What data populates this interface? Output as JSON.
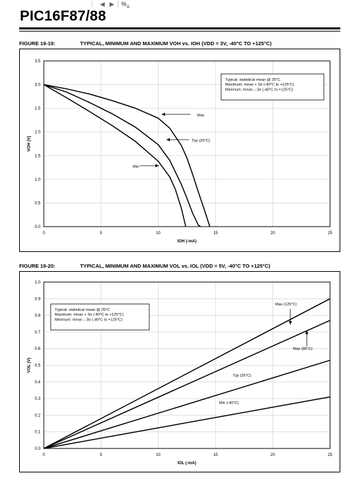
{
  "toolbar": {
    "back_icon": "chevron-left-icon",
    "forward_icon": "chevron-right-icon",
    "translate_icon": "translate-icon"
  },
  "header": {
    "title": "PIC16F87/88"
  },
  "figures": [
    {
      "number": "FIGURE 19-19:",
      "title": "TYPICAL, MINIMUM AND MAXIMUM VOH vs. IOH (VDD = 3V, -40°C TO +125°C)"
    },
    {
      "number": "FIGURE 19-20:",
      "title": "TYPICAL, MINIMUM AND MAXIMUM VOL vs. IOL (VDD = 5V, -40°C TO +125°C)"
    }
  ],
  "chart_data": [
    {
      "type": "line",
      "title": "TYPICAL, MINIMUM AND MAXIMUM VOH vs. IOH (VDD = 3V, -40°C TO +125°C)",
      "xlabel": "IOH (-mA)",
      "ylabel": "VOH (V)",
      "xlim": [
        0,
        25
      ],
      "ylim": [
        0,
        3.5
      ],
      "xticks": [
        "0",
        "5",
        "10",
        "15",
        "20",
        "25"
      ],
      "yticks": [
        "0.0",
        "0.5",
        "1.0",
        "1.5",
        "2.0",
        "2.5",
        "3.0",
        "3.5"
      ],
      "grid": true,
      "legend_text": [
        "Typical: statistical mean @ 25°C",
        "Maximum:  mean + 3σ (-40°C to +125°C)",
        "Minimum:  mean – 3σ (-40°C to +125°C)"
      ],
      "legend_position": "top-right",
      "series": [
        {
          "name": "Max",
          "x": [
            0,
            2,
            4,
            6,
            8,
            10,
            11,
            12,
            12.5,
            13,
            13.5,
            14,
            14.5
          ],
          "y": [
            3.0,
            2.91,
            2.8,
            2.66,
            2.5,
            2.29,
            2.08,
            1.72,
            1.45,
            1.1,
            0.73,
            0.37,
            0.0
          ]
        },
        {
          "name": "Typ (25°C)",
          "x": [
            0,
            2,
            4,
            6,
            8,
            10,
            11,
            12,
            12.5,
            13,
            13.5,
            13.7
          ],
          "y": [
            3.0,
            2.84,
            2.62,
            2.38,
            2.1,
            1.73,
            1.4,
            0.9,
            0.6,
            0.28,
            0.03,
            0.0
          ]
        },
        {
          "name": "Min",
          "x": [
            0,
            2,
            4,
            6,
            8,
            10,
            11,
            11.5,
            12,
            12.4
          ],
          "y": [
            3.0,
            2.72,
            2.43,
            2.13,
            1.8,
            1.38,
            1.05,
            0.78,
            0.4,
            0.0
          ]
        }
      ],
      "annotations": [
        "Max",
        "Typ (25°C)",
        "Min"
      ]
    },
    {
      "type": "line",
      "title": "TYPICAL, MINIMUM AND MAXIMUM VOL vs. IOL (VDD = 5V, -40°C TO +125°C)",
      "xlabel": "IOL (-mA)",
      "ylabel": "VOL (V)",
      "xlim": [
        0,
        25
      ],
      "ylim": [
        0,
        1.0
      ],
      "xticks": [
        "0",
        "5",
        "10",
        "15",
        "20",
        "25"
      ],
      "yticks": [
        "0.0",
        "0.1",
        "0.2",
        "0.3",
        "0.4",
        "0.5",
        "0.6",
        "0.7",
        "0.8",
        "0.9",
        "1.0"
      ],
      "grid": true,
      "legend_text": [
        "Typical: statistical mean @ 25°C",
        "Maximum:  mean + 3σ (-40°C to +125°C)",
        "Minimum:  mean – 3σ (-40°C to +125°C)"
      ],
      "legend_position": "top-left",
      "series": [
        {
          "name": "Max (125°C)",
          "x": [
            0,
            25
          ],
          "y": [
            0.0,
            0.9
          ]
        },
        {
          "name": "Max (85°C)",
          "x": [
            0,
            25
          ],
          "y": [
            0.0,
            0.77
          ]
        },
        {
          "name": "Typ (25°C)",
          "x": [
            0,
            25
          ],
          "y": [
            0.0,
            0.53
          ]
        },
        {
          "name": "Min (-40°C)",
          "x": [
            0,
            25
          ],
          "y": [
            0.0,
            0.31
          ]
        }
      ],
      "annotations": [
        "Max (125°C)",
        "Max (85°C)",
        "Typ (25°C)",
        "Min (-40°C)"
      ]
    }
  ]
}
